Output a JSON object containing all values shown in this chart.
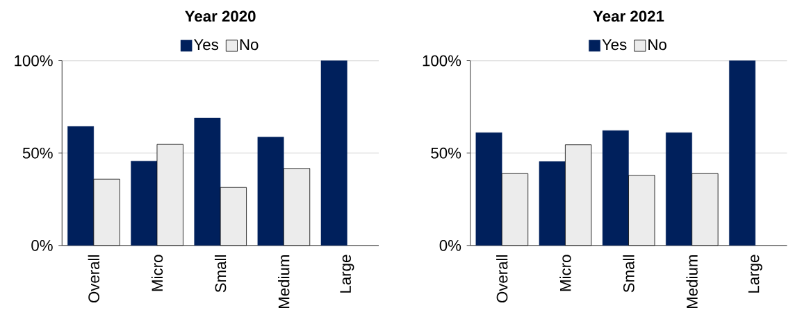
{
  "chart_data": [
    {
      "type": "bar",
      "title": "Year 2020",
      "categories": [
        "Overall",
        "Micro",
        "Small",
        "Medium",
        "Large"
      ],
      "series": [
        {
          "name": "Yes",
          "color": "#00205c",
          "values": [
            64.4,
            45.7,
            69.0,
            58.7,
            100
          ]
        },
        {
          "name": "No",
          "color": "#ececec",
          "values": [
            35.9,
            54.7,
            31.4,
            41.7,
            null
          ]
        }
      ],
      "ylim": [
        0,
        100
      ],
      "yticks": [
        {
          "value": 0,
          "label": "0%"
        },
        {
          "value": 50,
          "label": "50%"
        },
        {
          "value": 100,
          "label": "100%"
        }
      ],
      "grid": "y",
      "legend": "top"
    },
    {
      "type": "bar",
      "title": "Year 2021",
      "categories": [
        "Overall",
        "Micro",
        "Small",
        "Medium",
        "Large"
      ],
      "series": [
        {
          "name": "Yes",
          "color": "#00205c",
          "values": [
            61.1,
            45.5,
            62.2,
            61.1,
            100
          ]
        },
        {
          "name": "No",
          "color": "#ececec",
          "values": [
            38.9,
            54.5,
            38.0,
            38.9,
            null
          ]
        }
      ],
      "ylim": [
        0,
        100
      ],
      "yticks": [
        {
          "value": 0,
          "label": "0%"
        },
        {
          "value": 50,
          "label": "50%"
        },
        {
          "value": 100,
          "label": "100%"
        }
      ],
      "grid": "y",
      "legend": "top"
    }
  ]
}
